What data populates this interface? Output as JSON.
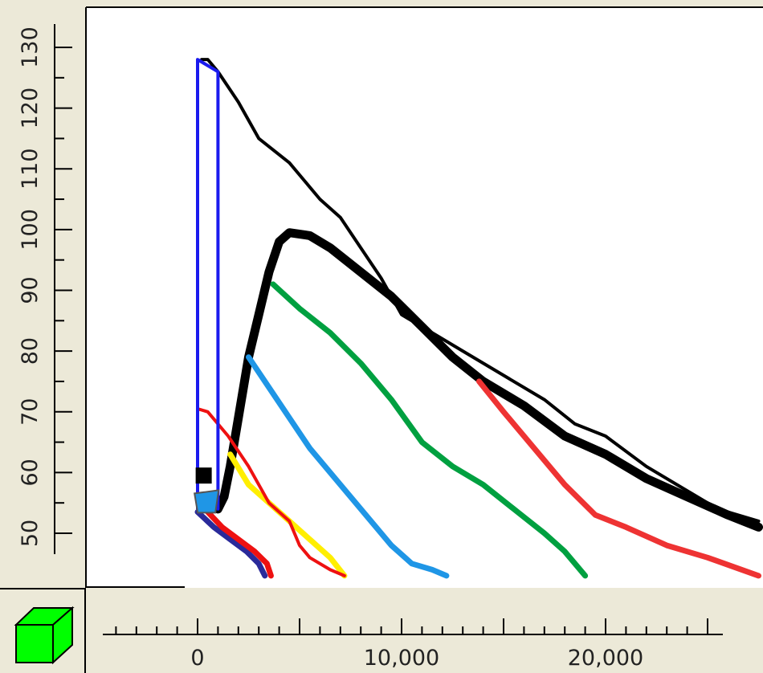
{
  "colors": {
    "panel_bg": "#ece9d8",
    "plot_bg": "#ffffff",
    "axis": "#000000",
    "cube_fill": "#00ff00",
    "cube_edge": "#000000"
  },
  "toolbar": {
    "icon": "green-cube-icon"
  },
  "chart_data": {
    "type": "line",
    "title": "",
    "xlabel": "",
    "ylabel": "",
    "xlim": [
      -4600,
      27500
    ],
    "ylim": [
      41,
      138
    ],
    "x_ticks": [
      {
        "value": 0,
        "label": "0"
      },
      {
        "value": 10000,
        "label": "10,000"
      },
      {
        "value": 20000,
        "label": "20,000"
      }
    ],
    "x_minor_step": 1000,
    "y_ticks": [
      {
        "value": 50,
        "label": "50"
      },
      {
        "value": 60,
        "label": "60"
      },
      {
        "value": 70,
        "label": "70"
      },
      {
        "value": 80,
        "label": "80"
      },
      {
        "value": 90,
        "label": "90"
      },
      {
        "value": 100,
        "label": "100"
      },
      {
        "value": 110,
        "label": "110"
      },
      {
        "value": 120,
        "label": "120"
      },
      {
        "value": 130,
        "label": "130"
      }
    ],
    "grid": false,
    "legend": "none",
    "series": [
      {
        "color": "#000000",
        "style": "thin",
        "x": [
          200,
          500,
          1000,
          2000,
          3000,
          4500,
          6000,
          7000,
          8000,
          9000,
          10000,
          11500,
          13000,
          15000,
          17000,
          18500,
          20000,
          22000,
          24000,
          25500,
          27500
        ],
        "y": [
          128,
          128,
          126,
          121,
          115,
          111,
          105,
          102,
          97,
          92,
          86,
          83,
          80,
          76,
          72,
          68,
          66,
          61,
          57,
          54,
          52
        ]
      },
      {
        "color": "#000000",
        "style": "thick",
        "x": [
          1000,
          1300,
          1600,
          2000,
          2500,
          3000,
          3500,
          4000,
          4500,
          5500,
          6500,
          8000,
          9500,
          11000,
          12500,
          14000,
          16000,
          18000,
          20000,
          22000,
          24000,
          26000,
          27500
        ],
        "y": [
          54,
          56,
          61,
          69,
          79,
          86,
          93,
          98,
          99.5,
          99,
          97,
          93,
          89,
          84,
          79,
          75,
          71,
          66,
          63,
          59,
          56,
          53,
          51
        ]
      },
      {
        "color": "#00a040",
        "style": "medium",
        "x": [
          3700,
          5000,
          6500,
          8000,
          9500,
          11000,
          12500,
          14000,
          15500,
          17000,
          18000,
          19000
        ],
        "y": [
          91,
          87,
          83,
          78,
          72,
          65,
          61,
          58,
          54,
          50,
          47,
          43
        ]
      },
      {
        "color": "#1f96e6",
        "style": "medium",
        "x": [
          2500,
          3500,
          4500,
          5500,
          6500,
          7500,
          8500,
          9500,
          10500,
          11500,
          12200
        ],
        "y": [
          79,
          74,
          69,
          64,
          60,
          56,
          52,
          48,
          45,
          44,
          43
        ]
      },
      {
        "color": "#ee3333",
        "style": "medium",
        "x": [
          13800,
          15000,
          16500,
          18000,
          19500,
          21000,
          23000,
          25000,
          27500
        ],
        "y": [
          75,
          70,
          64,
          58,
          53,
          51,
          48,
          46,
          43
        ]
      },
      {
        "color": "#ffee00",
        "style": "medium",
        "x": [
          1600,
          2500,
          3500,
          4500,
          5500,
          6500,
          7200
        ],
        "y": [
          63,
          58,
          55,
          52,
          49,
          46,
          43
        ]
      },
      {
        "color": "#ee1111",
        "style": "thin",
        "x": [
          0,
          500,
          1500,
          2500,
          3500,
          4500,
          5000,
          5500,
          6500,
          7200
        ],
        "y": [
          70.5,
          70,
          66,
          61,
          55,
          52,
          48,
          46,
          44,
          43
        ]
      },
      {
        "color": "#2a2a9a",
        "style": "medium",
        "x": [
          0,
          800,
          1600,
          2400,
          3000,
          3300
        ],
        "y": [
          53.5,
          51,
          49,
          47,
          45,
          43
        ]
      },
      {
        "color": "#ee1111",
        "style": "medium",
        "x": [
          500,
          1200,
          2000,
          2800,
          3400,
          3600
        ],
        "y": [
          53.5,
          51,
          49,
          47,
          45,
          43
        ]
      },
      {
        "color": "#1a1aee",
        "style": "thin",
        "x": [
          0,
          0,
          1000,
          1000
        ],
        "y": [
          54,
          128,
          126,
          54
        ]
      }
    ],
    "markers": [
      {
        "shape": "square",
        "color": "#000000",
        "x": 300,
        "y": 59.5
      },
      {
        "shape": "cup",
        "color": "#1f96e6",
        "x": 400,
        "y": 55.5
      }
    ]
  }
}
